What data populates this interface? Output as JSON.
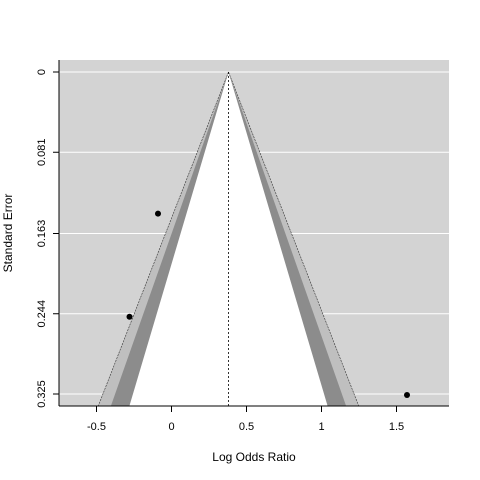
{
  "chart_data": {
    "type": "scatter",
    "subtype": "contour-enhanced funnel plot",
    "title": "",
    "xlabel": "Log Odds Ratio",
    "ylabel": "Standard Error",
    "xlim": [
      -0.75,
      1.85
    ],
    "ylim": [
      0.325,
      0
    ],
    "y_inverted": true,
    "grid": true,
    "x_ticks": [
      {
        "value": -0.5,
        "label": "-0.5"
      },
      {
        "value": 0,
        "label": "0"
      },
      {
        "value": 0.5,
        "label": "0.5"
      },
      {
        "value": 1,
        "label": "1"
      },
      {
        "value": 1.5,
        "label": "1.5"
      }
    ],
    "y_ticks": [
      {
        "value": 0,
        "label": "0"
      },
      {
        "value": 0.081,
        "label": "0.081"
      },
      {
        "value": 0.163,
        "label": "0.163"
      },
      {
        "value": 0.244,
        "label": "0.244"
      },
      {
        "value": 0.325,
        "label": "0.325"
      }
    ],
    "center_estimate": 0.38,
    "contours": [
      {
        "z": 2.576,
        "color": "#ffffff"
      },
      {
        "z": 2.326,
        "color": "#8c8c8c"
      },
      {
        "z": 1.96,
        "color": "#bfbfbf"
      }
    ],
    "background_color": "#d3d3d3",
    "points": [
      {
        "x": -0.09,
        "y": 0.143
      },
      {
        "x": -0.28,
        "y": 0.247
      },
      {
        "x": 1.57,
        "y": 0.326
      }
    ]
  }
}
